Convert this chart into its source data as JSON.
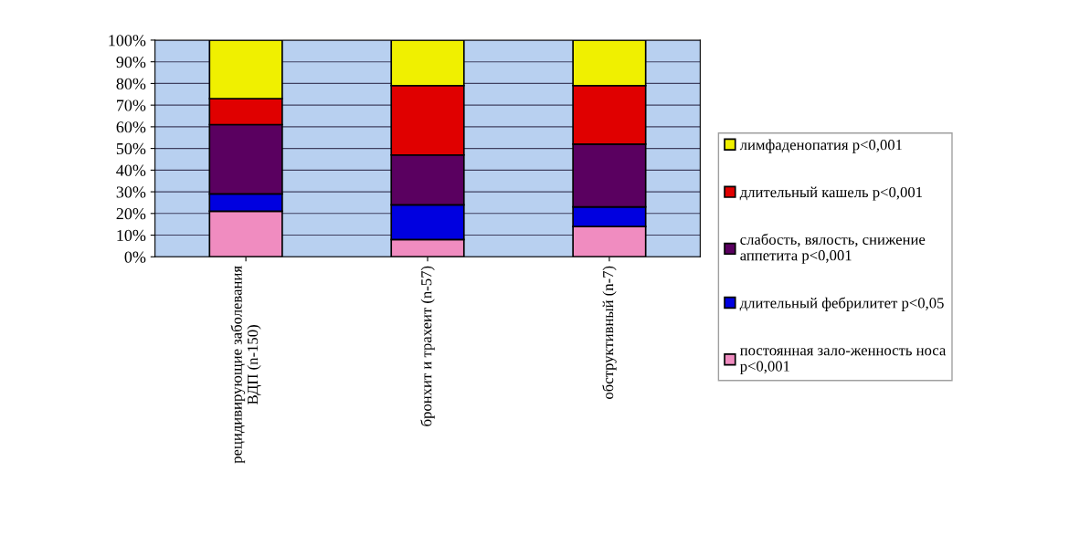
{
  "chart_data": {
    "type": "bar",
    "stacked": true,
    "categories": [
      "рецидивирующие заболевания ВДП (n-150)",
      "бронхит и трахеит (n-57)",
      "обструктивный (n-7)"
    ],
    "series": [
      {
        "name": "постоянная зало-женность носа p<0,001",
        "color": "#f08cc0",
        "values": [
          21,
          8,
          14
        ]
      },
      {
        "name": "длительный фебрилитет p<0,05",
        "color": "#0000e0",
        "values": [
          8,
          16,
          9
        ]
      },
      {
        "name": "слабость, вялость, снижение аппетита p<0,001",
        "color": "#5a0060",
        "values": [
          32,
          23,
          29
        ]
      },
      {
        "name": "длительный кашель p<0,001",
        "color": "#e00000",
        "values": [
          12,
          32,
          27
        ]
      },
      {
        "name": "лимфаденопатия p<0,001",
        "color": "#f0f000",
        "values": [
          27,
          21,
          21
        ]
      }
    ],
    "ylim": [
      0,
      100
    ],
    "yticks": [
      {
        "value": 0,
        "label": "0%"
      },
      {
        "value": 10,
        "label": "10%"
      },
      {
        "value": 20,
        "label": "20%"
      },
      {
        "value": 30,
        "label": "30%"
      },
      {
        "value": 40,
        "label": "40%"
      },
      {
        "value": 50,
        "label": "50%"
      },
      {
        "value": 60,
        "label": "60%"
      },
      {
        "value": 70,
        "label": "70%"
      },
      {
        "value": 80,
        "label": "80%"
      },
      {
        "value": 90,
        "label": "90%"
      },
      {
        "value": 100,
        "label": "100%"
      }
    ],
    "grid": "y",
    "legend": "right"
  }
}
